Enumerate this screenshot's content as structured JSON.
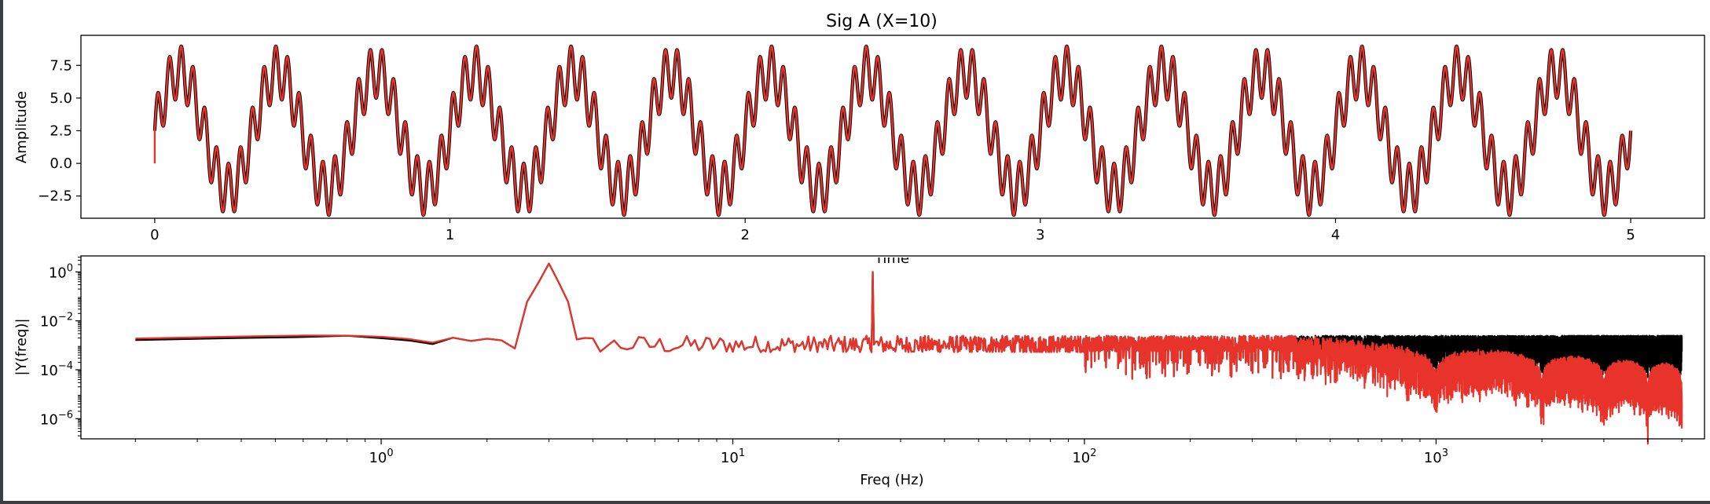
{
  "chart_data": [
    {
      "type": "line",
      "title": "Sig A (X=10)",
      "xlabel": "Time",
      "ylabel": "Amplitude",
      "xlim": [
        -0.25,
        5.25
      ],
      "ylim": [
        -4.2,
        9.8
      ],
      "xticks": [
        0,
        1,
        2,
        3,
        4,
        5
      ],
      "xtick_labels": [
        "0",
        "1",
        "2",
        "3",
        "4",
        "5"
      ],
      "yticks": [
        -2.5,
        0.0,
        2.5,
        5.0,
        7.5
      ],
      "ytick_labels": [
        "−2.5",
        "0.0",
        "2.5",
        "5.0",
        "7.5"
      ],
      "grid": false,
      "signal": {
        "t_start": 0,
        "t_end": 5,
        "offset": 2.5,
        "components": [
          {
            "frequency_hz": 3,
            "amplitude": 4.5
          },
          {
            "frequency_hz": 25,
            "amplitude": 2.0
          }
        ]
      },
      "series": [
        {
          "color": "#000000",
          "values": "original signal"
        },
        {
          "color": "#e8332a",
          "values": "reconstructed signal, starts at 0.0"
        }
      ]
    },
    {
      "type": "line",
      "xlabel": "Freq (Hz)",
      "ylabel": "|Y(freq)|",
      "xscale": "log",
      "yscale": "log",
      "xlim": [
        0.14,
        5800
      ],
      "ylim": [
        1.5e-07,
        4.5
      ],
      "xticks": [
        1,
        10,
        100,
        1000
      ],
      "xtick_labels": [
        "10^0",
        "10^1",
        "10^2",
        "10^3"
      ],
      "yticks": [
        1,
        0.01,
        0.0001,
        1e-06
      ],
      "ytick_labels": [
        "10^0",
        "10^−2",
        "10^−4",
        "10^−6"
      ],
      "grid": false,
      "peaks": [
        {
          "frequency_hz": 3,
          "magnitude": 2.2
        },
        {
          "frequency_hz": 25,
          "magnitude": 1.0
        }
      ],
      "series": [
        {
          "color": "#000000",
          "noise_floor": 0.0015,
          "description": "flat spectrum up to 5000 Hz"
        },
        {
          "color": "#e8332a",
          "noise_floor": 0.0015,
          "description": "rolls off above ~500 Hz with notches near 1000, 2000, 3000, 4000 Hz"
        }
      ]
    }
  ]
}
